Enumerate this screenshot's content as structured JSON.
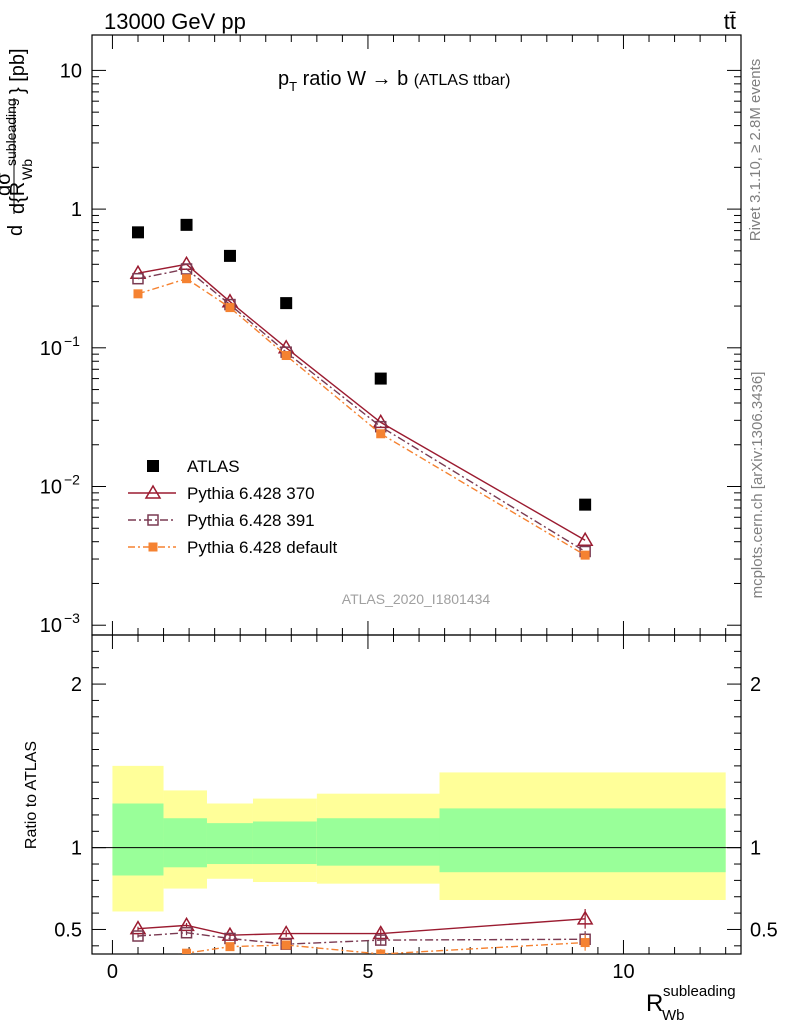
{
  "header": {
    "left": "13000 GeV pp",
    "right": "tt̄"
  },
  "side_labels": {
    "rivet": "Rivet 3.1.10, ≥ 2.8M events",
    "mcplots": "mcplots.cern.ch [arXiv:1306.3436]"
  },
  "chart_data": [
    {
      "type": "scatter",
      "title": "p_T ratio W → b (ATLAS ttbar)",
      "watermark": "ATLAS_2020_I1801434",
      "ylabel": "dσ^fid / d{R_Wb^subleading} [pb]",
      "yscale": "log",
      "ylim": [
        0.00085,
        18
      ],
      "xlim": [
        -0.4,
        12.3
      ],
      "yticks": [
        {
          "v": 10,
          "base": "10",
          "exp": ""
        },
        {
          "v": 1,
          "base": "1",
          "exp": ""
        },
        {
          "v": 0.1,
          "base": "10",
          "exp": "−1"
        },
        {
          "v": 0.01,
          "base": "10",
          "exp": "−2"
        },
        {
          "v": 0.001,
          "base": "10",
          "exp": "−3"
        }
      ],
      "legend_position": "bottom-left",
      "series": [
        {
          "name": "ATLAS",
          "color": "#000000",
          "style": "data",
          "x": [
            0.5,
            1.45,
            2.3,
            3.4,
            5.25,
            9.25
          ],
          "y": [
            0.68,
            0.77,
            0.46,
            0.21,
            0.06,
            0.0074
          ]
        },
        {
          "name": "Pythia 6.428 370",
          "color": "#9b1b30",
          "style": "line-triangle",
          "x": [
            0.5,
            1.45,
            2.3,
            3.4,
            5.25,
            9.25
          ],
          "y": [
            0.345,
            0.4,
            0.215,
            0.1,
            0.029,
            0.0041
          ]
        },
        {
          "name": "Pythia 6.428 391",
          "color": "#7a3a52",
          "style": "dashdot-square",
          "x": [
            0.5,
            1.45,
            2.3,
            3.4,
            5.25,
            9.25
          ],
          "y": [
            0.315,
            0.37,
            0.205,
            0.093,
            0.027,
            0.0034
          ]
        },
        {
          "name": "Pythia 6.428 default",
          "color": "#f58231",
          "style": "dashdot-filledsquare",
          "x": [
            0.5,
            1.45,
            2.3,
            3.4,
            5.25,
            9.25
          ],
          "y": [
            0.245,
            0.315,
            0.195,
            0.088,
            0.024,
            0.0032
          ]
        }
      ]
    },
    {
      "type": "line",
      "ylabel": "Ratio to ATLAS",
      "xlabel": "R_Wb^subleading",
      "xlim": [
        -0.4,
        12.3
      ],
      "ylim": [
        0.35,
        2.3
      ],
      "xticks": [
        "0",
        "5",
        "10"
      ],
      "yticks": [
        "0.5",
        "1",
        "2"
      ],
      "bands": [
        {
          "x0": 0.0,
          "x1": 1.0,
          "green": [
            0.83,
            1.27
          ],
          "yellow": [
            0.61,
            1.5
          ]
        },
        {
          "x0": 1.0,
          "x1": 1.85,
          "green": [
            0.88,
            1.18
          ],
          "yellow": [
            0.75,
            1.35
          ]
        },
        {
          "x0": 1.85,
          "x1": 2.75,
          "green": [
            0.9,
            1.15
          ],
          "yellow": [
            0.81,
            1.27
          ]
        },
        {
          "x0": 2.75,
          "x1": 4.0,
          "green": [
            0.9,
            1.16
          ],
          "yellow": [
            0.79,
            1.3
          ]
        },
        {
          "x0": 4.0,
          "x1": 6.4,
          "green": [
            0.89,
            1.18
          ],
          "yellow": [
            0.78,
            1.33
          ]
        },
        {
          "x0": 6.4,
          "x1": 12.0,
          "green": [
            0.85,
            1.24
          ],
          "yellow": [
            0.68,
            1.46
          ]
        }
      ],
      "series": [
        {
          "name": "Pythia 6.428 370",
          "color": "#9b1b30",
          "style": "line-triangle",
          "x": [
            0.5,
            1.45,
            2.3,
            3.4,
            5.25,
            9.25
          ],
          "y": [
            0.505,
            0.525,
            0.465,
            0.475,
            0.475,
            0.565
          ],
          "err": [
            0.012,
            0.015,
            0.015,
            0.02,
            0.03,
            0.06
          ]
        },
        {
          "name": "Pythia 6.428 391",
          "color": "#7a3a52",
          "style": "dashdot-square",
          "x": [
            0.5,
            1.45,
            2.3,
            3.4,
            5.25,
            9.25
          ],
          "y": [
            0.46,
            0.48,
            0.445,
            0.41,
            0.435,
            0.44
          ],
          "err": [
            0.01,
            0.015,
            0.015,
            0.02,
            0.03,
            0.05
          ]
        },
        {
          "name": "Pythia 6.428 default",
          "color": "#f58231",
          "style": "dashdot-filledsquare",
          "x": [
            0.5,
            1.45,
            2.3,
            3.4,
            5.25,
            9.25
          ],
          "y": [
            0.3,
            0.355,
            0.395,
            0.405,
            0.35,
            0.42
          ],
          "err": [
            0.01,
            0.015,
            0.015,
            0.02,
            0.03,
            0.05
          ]
        }
      ]
    }
  ]
}
